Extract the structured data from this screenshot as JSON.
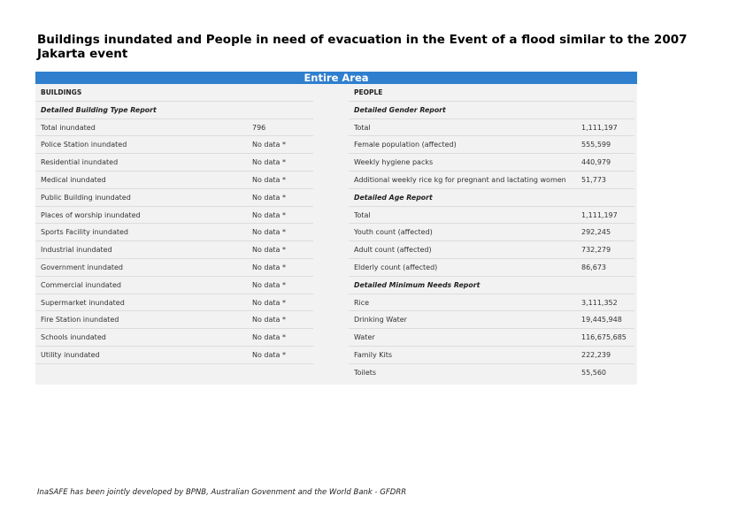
{
  "title": "Buildings inundated and People in need of evacuation in the Event of a flood similar to the 2007 Jakarta event",
  "banner": "Entire Area",
  "buildings": {
    "header": "BUILDINGS",
    "section": "Detailed Building Type Report",
    "rows": [
      {
        "label": "Total inundated",
        "value": "796"
      },
      {
        "label": "Police Station inundated",
        "value": "No data *"
      },
      {
        "label": "Residential inundated",
        "value": "No data *"
      },
      {
        "label": "Medical inundated",
        "value": "No data *"
      },
      {
        "label": "Public Building inundated",
        "value": "No data *"
      },
      {
        "label": "Places of worship inundated",
        "value": "No data *"
      },
      {
        "label": "Sports Facility inundated",
        "value": "No data *"
      },
      {
        "label": "Industrial inundated",
        "value": "No data *"
      },
      {
        "label": "Government inundated",
        "value": "No data *"
      },
      {
        "label": "Commercial inundated",
        "value": "No data *"
      },
      {
        "label": "Supermarket inundated",
        "value": "No data *"
      },
      {
        "label": "Fire Station inundated",
        "value": "No data *"
      },
      {
        "label": "Schools inundated",
        "value": "No data *"
      },
      {
        "label": "Utility inundated",
        "value": "No data *"
      }
    ]
  },
  "people": {
    "header": "PEOPLE",
    "gender": {
      "section": "Detailed Gender Report",
      "rows": [
        {
          "label": "Total",
          "value": "1,111,197"
        },
        {
          "label": "Female population (affected)",
          "value": "555,599"
        },
        {
          "label": "Weekly hygiene packs",
          "value": "440,979"
        },
        {
          "label": "Additional weekly rice kg for pregnant and lactating women",
          "value": "51,773"
        }
      ]
    },
    "age": {
      "section": "Detailed Age Report",
      "rows": [
        {
          "label": "Total",
          "value": "1,111,197"
        },
        {
          "label": "Youth count (affected)",
          "value": "292,245"
        },
        {
          "label": "Adult count (affected)",
          "value": "732,279"
        },
        {
          "label": "Elderly count (affected)",
          "value": "86,673"
        }
      ]
    },
    "needs": {
      "section": "Detailed Minimum Needs Report",
      "rows": [
        {
          "label": "Rice",
          "value": "3,111,352"
        },
        {
          "label": "Drinking Water",
          "value": "19,445,948"
        },
        {
          "label": "Water",
          "value": "116,675,685"
        },
        {
          "label": "Family Kits",
          "value": "222,239"
        },
        {
          "label": "Toilets",
          "value": "55,560"
        }
      ]
    }
  },
  "footer": "InaSAFE has been jointly developed by BPNB, Australian Govenment and the World Bank - GFDRR"
}
